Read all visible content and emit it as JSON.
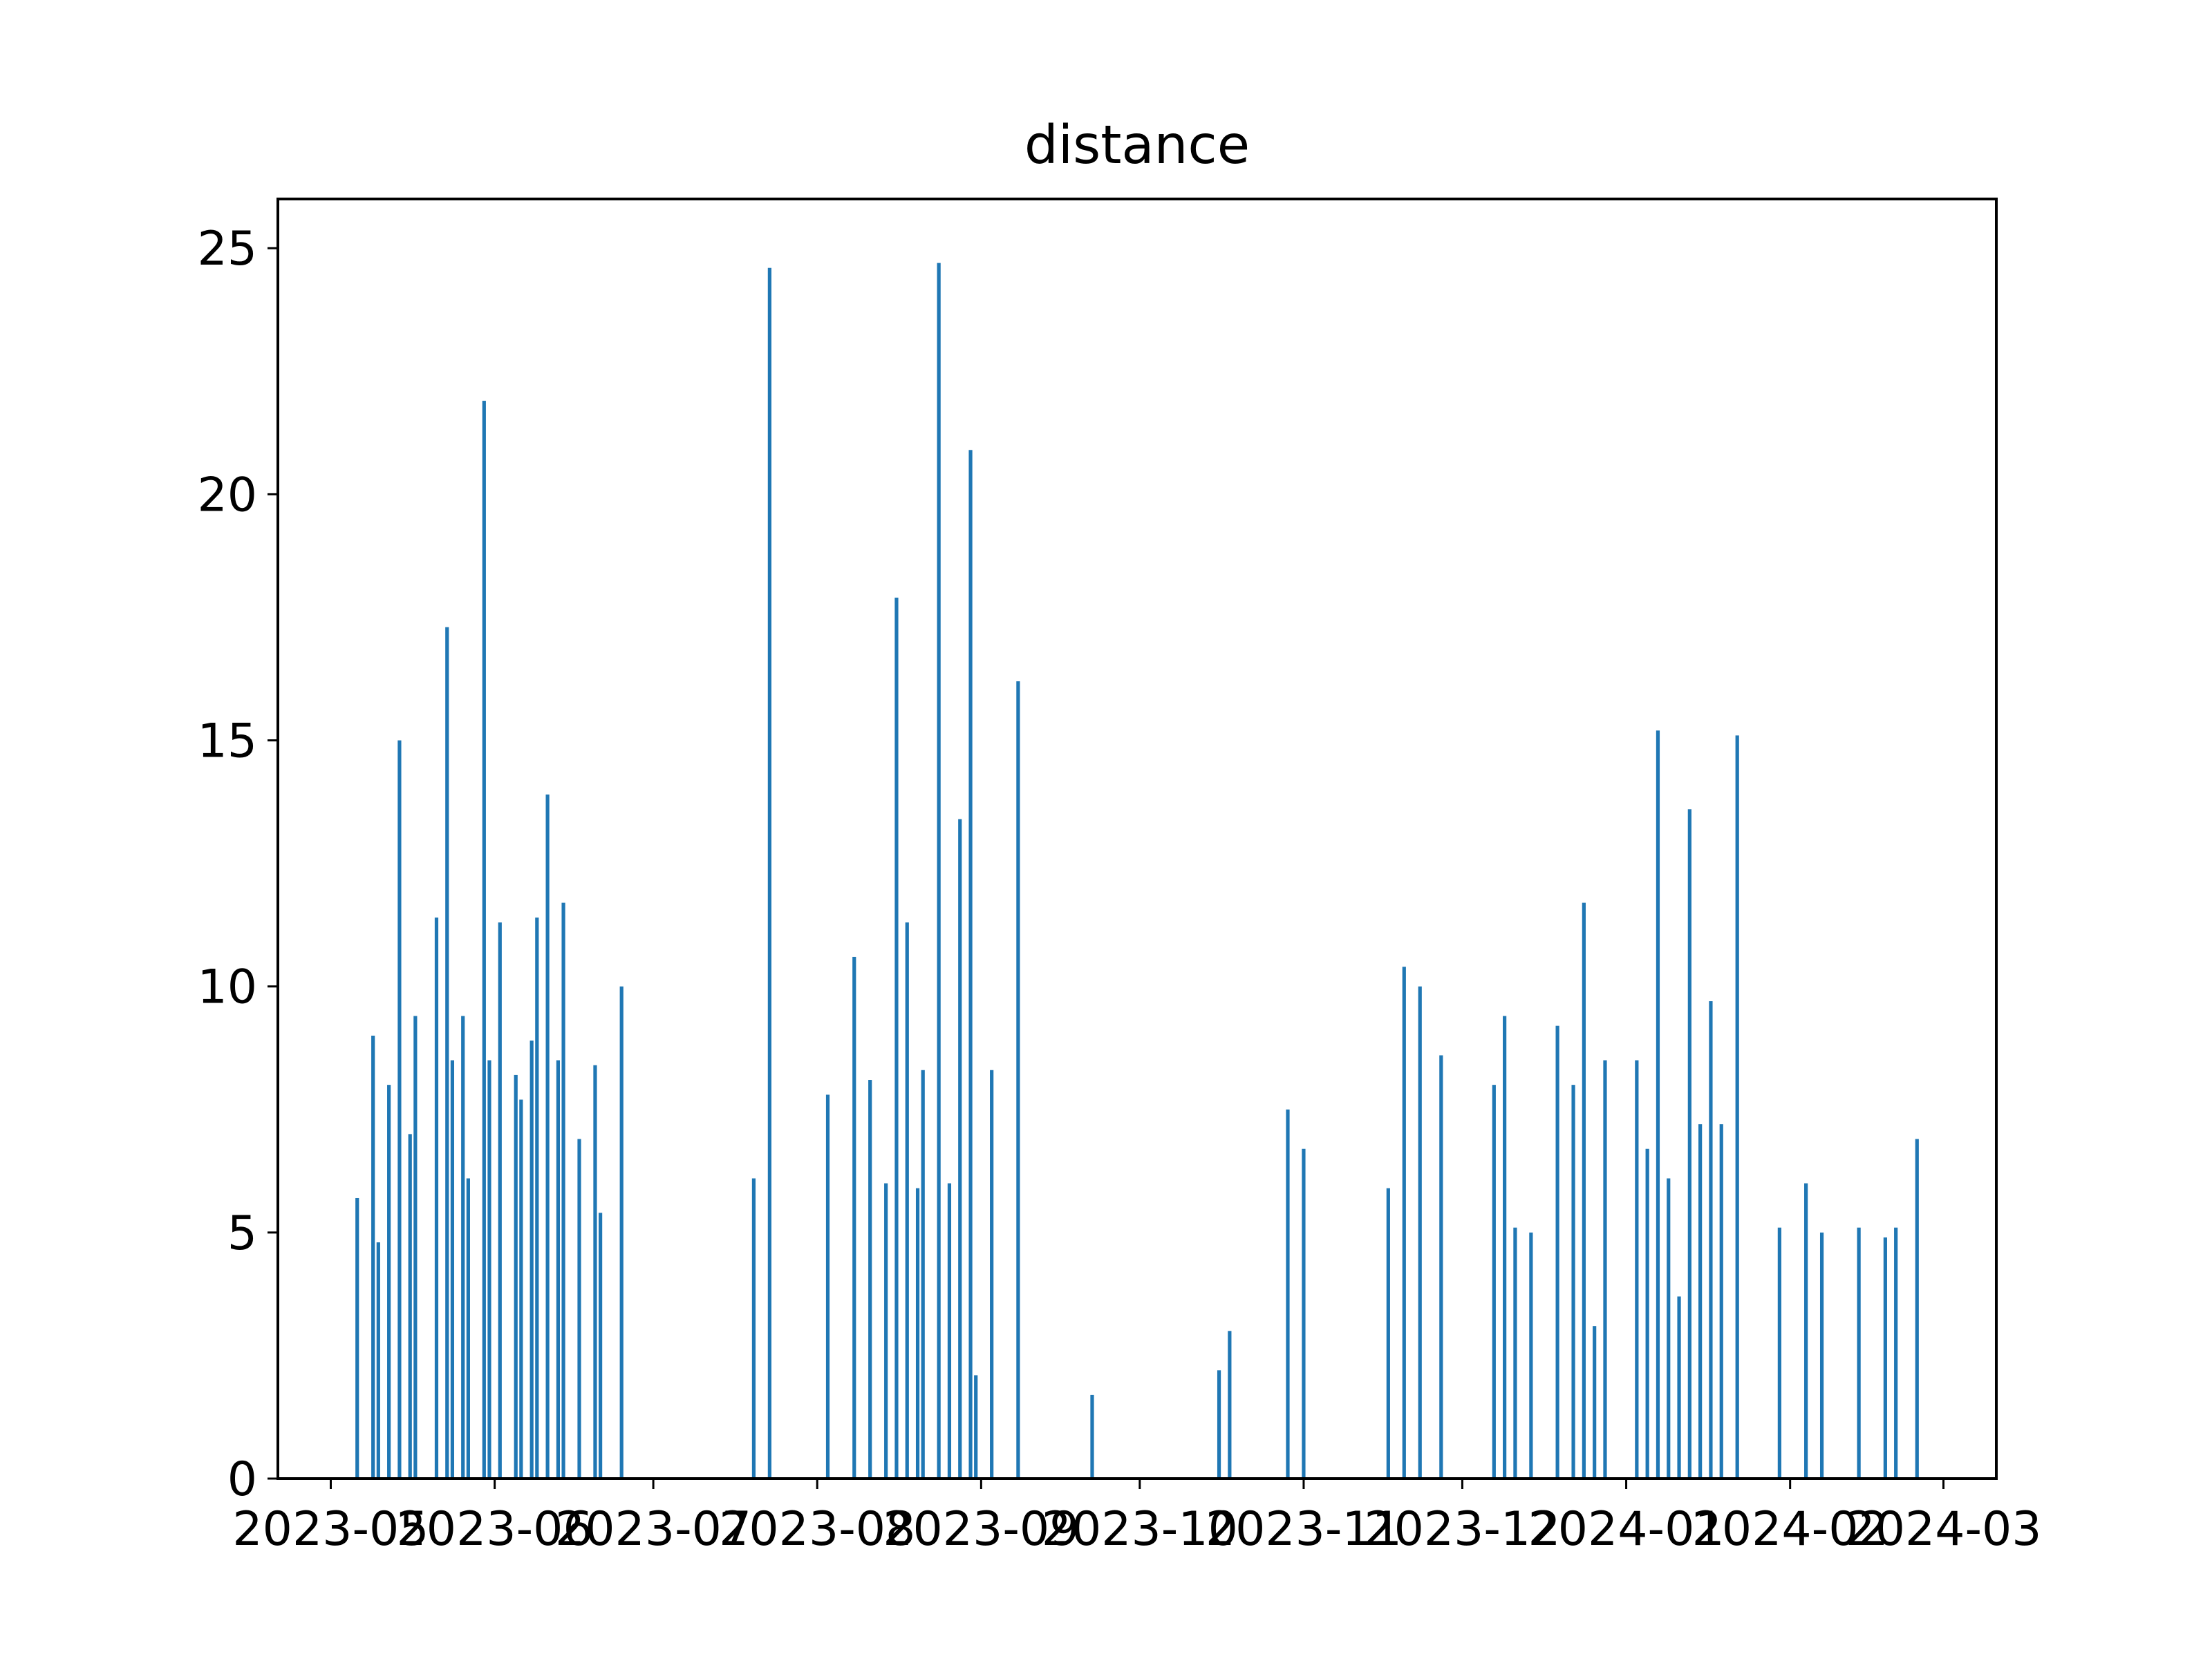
{
  "chart_data": {
    "type": "bar",
    "title": "distance",
    "xlabel": "",
    "ylabel": "",
    "ylim": [
      0,
      26
    ],
    "xlim": [
      "2023-04-21",
      "2024-03-11"
    ],
    "grid": false,
    "legend": "none",
    "bar_color": "#1f77b4",
    "x_ticks": [
      "2023-05-01",
      "2023-06-01",
      "2023-07-01",
      "2023-08-01",
      "2023-09-01",
      "2023-10-01",
      "2023-11-01",
      "2023-12-01",
      "2024-01-01",
      "2024-02-01",
      "2024-03-01"
    ],
    "x_tick_labels": [
      "2023-05",
      "2023-06",
      "2023-07",
      "2023-08",
      "2023-09",
      "2023-10",
      "2023-11",
      "2023-12",
      "2024-01",
      "2024-02",
      "2024-03"
    ],
    "y_ticks": [
      0,
      5,
      10,
      15,
      20,
      25
    ],
    "y_tick_labels": [
      "0",
      "5",
      "10",
      "15",
      "20",
      "25"
    ],
    "x": [
      "2023-05-06",
      "2023-05-09",
      "2023-05-10",
      "2023-05-12",
      "2023-05-14",
      "2023-05-16",
      "2023-05-17",
      "2023-05-21",
      "2023-05-23",
      "2023-05-24",
      "2023-05-26",
      "2023-05-27",
      "2023-05-30",
      "2023-05-31",
      "2023-06-02",
      "2023-06-05",
      "2023-06-06",
      "2023-06-08",
      "2023-06-09",
      "2023-06-11",
      "2023-06-13",
      "2023-06-14",
      "2023-06-17",
      "2023-06-20",
      "2023-06-21",
      "2023-06-25",
      "2023-07-20",
      "2023-07-23",
      "2023-08-03",
      "2023-08-08",
      "2023-08-11",
      "2023-08-14",
      "2023-08-16",
      "2023-08-18",
      "2023-08-20",
      "2023-08-21",
      "2023-08-24",
      "2023-08-26",
      "2023-08-28",
      "2023-08-30",
      "2023-08-31",
      "2023-09-03",
      "2023-09-08",
      "2023-09-22",
      "2023-10-16",
      "2023-10-18",
      "2023-10-29",
      "2023-11-01",
      "2023-11-17",
      "2023-11-20",
      "2023-11-23",
      "2023-11-27",
      "2023-12-07",
      "2023-12-09",
      "2023-12-11",
      "2023-12-14",
      "2023-12-19",
      "2023-12-22",
      "2023-12-24",
      "2023-12-26",
      "2023-12-28",
      "2024-01-03",
      "2024-01-05",
      "2024-01-07",
      "2024-01-09",
      "2024-01-11",
      "2024-01-13",
      "2024-01-15",
      "2024-01-17",
      "2024-01-19",
      "2024-01-22",
      "2024-01-30",
      "2024-02-04",
      "2024-02-07",
      "2024-02-14",
      "2024-02-19",
      "2024-02-21",
      "2024-02-25"
    ],
    "values": [
      5.7,
      9.0,
      4.8,
      8.0,
      15.0,
      7.0,
      9.4,
      11.4,
      17.3,
      8.5,
      9.4,
      6.1,
      21.9,
      8.5,
      11.3,
      8.2,
      7.7,
      8.9,
      11.4,
      13.9,
      8.5,
      11.7,
      6.9,
      8.4,
      5.4,
      10.0,
      6.1,
      24.6,
      7.8,
      10.6,
      8.1,
      6.0,
      17.9,
      11.3,
      5.9,
      8.3,
      24.7,
      6.0,
      13.4,
      20.9,
      2.1,
      8.3,
      16.2,
      1.7,
      2.2,
      3.0,
      7.5,
      6.7,
      5.9,
      10.4,
      10.0,
      8.6,
      8.0,
      9.4,
      5.1,
      5.0,
      9.2,
      8.0,
      11.7,
      3.1,
      8.5,
      8.5,
      6.7,
      15.2,
      6.1,
      3.7,
      13.6,
      7.2,
      9.7,
      7.2,
      15.1,
      5.1,
      6.0,
      5.0,
      5.1,
      4.9,
      5.1,
      6.9
    ]
  }
}
